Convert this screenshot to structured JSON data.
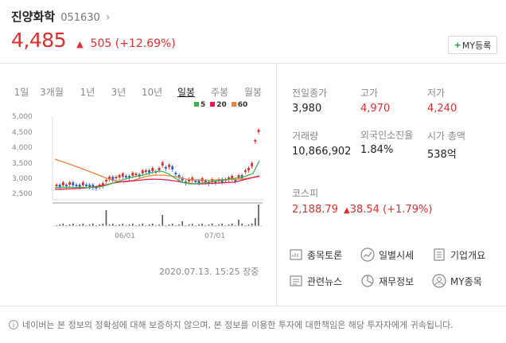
{
  "stock": {
    "name": "진양화학",
    "code": "051630",
    "price": "4,485",
    "change": "505",
    "change_pct": "(+12.69%)"
  },
  "my_button": "MY등록",
  "periods": [
    "1일",
    "3개월",
    "1년",
    "3년",
    "10년",
    "일봉",
    "주봉",
    "월봉"
  ],
  "active_period": "일봉",
  "legend": [
    {
      "label": "5",
      "color": "#3cb44b"
    },
    {
      "label": "20",
      "color": "#e6194b"
    },
    {
      "label": "60",
      "color": "#f58231"
    }
  ],
  "chart_data": {
    "type": "candlestick",
    "y_ticks": [
      "5,000",
      "4,500",
      "4,000",
      "3,500",
      "3,000",
      "2,500"
    ],
    "ylim": [
      2500,
      5000
    ],
    "x_ticks": [
      "06/01",
      "07/01"
    ]
  },
  "timestamp": "2020.07.13. 15:25 장중",
  "stats": [
    {
      "label": "전일종가",
      "value": "3,980",
      "red": false
    },
    {
      "label": "고가",
      "value": "4,970",
      "red": true
    },
    {
      "label": "저가",
      "value": "4,240",
      "red": true
    },
    {
      "label": "거래량",
      "value": "10,866,902",
      "red": false
    },
    {
      "label": "외국인소진율",
      "value": "1.84%",
      "red": false
    },
    {
      "label": "시가 총액",
      "value": "538억",
      "red": false
    }
  ],
  "kospi": {
    "label": "코스피",
    "value": "2,188.79",
    "change": "38.54",
    "change_pct": "(+1.79%)"
  },
  "menu": [
    "종목토론",
    "일별시세",
    "기업개요",
    "관련뉴스",
    "재무정보",
    "MY종목"
  ],
  "footer": "네이버는 본 정보의 정확성에 대해 보증하지 않으며, 본 정보를 이용한 투자에 대한책임은 해당 투자자에게 귀속됩니다.",
  "colors": {
    "up": "#e22d2d",
    "down": "#2f5fd0",
    "accent": "#0ca13f"
  }
}
